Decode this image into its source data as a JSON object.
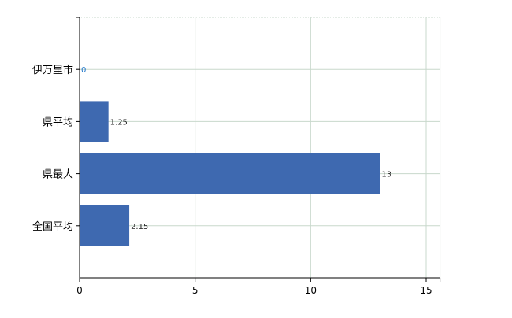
{
  "chart_data": {
    "type": "bar",
    "orientation": "horizontal",
    "categories": [
      "伊万里市",
      "県平均",
      "県最大",
      "全国平均"
    ],
    "values": [
      0,
      1.25,
      13,
      2.15
    ],
    "data_labels": [
      "0",
      "1.25",
      "13",
      "2.15"
    ],
    "title": "",
    "xlabel": "",
    "ylabel": "",
    "xlim": [
      0,
      15.6
    ],
    "xticks": [
      0,
      5,
      10,
      15
    ],
    "grid": true,
    "colors": {
      "bar": "#3e69b0",
      "grid": "#c8d8cc",
      "zero_label": "#1a73c8"
    }
  }
}
